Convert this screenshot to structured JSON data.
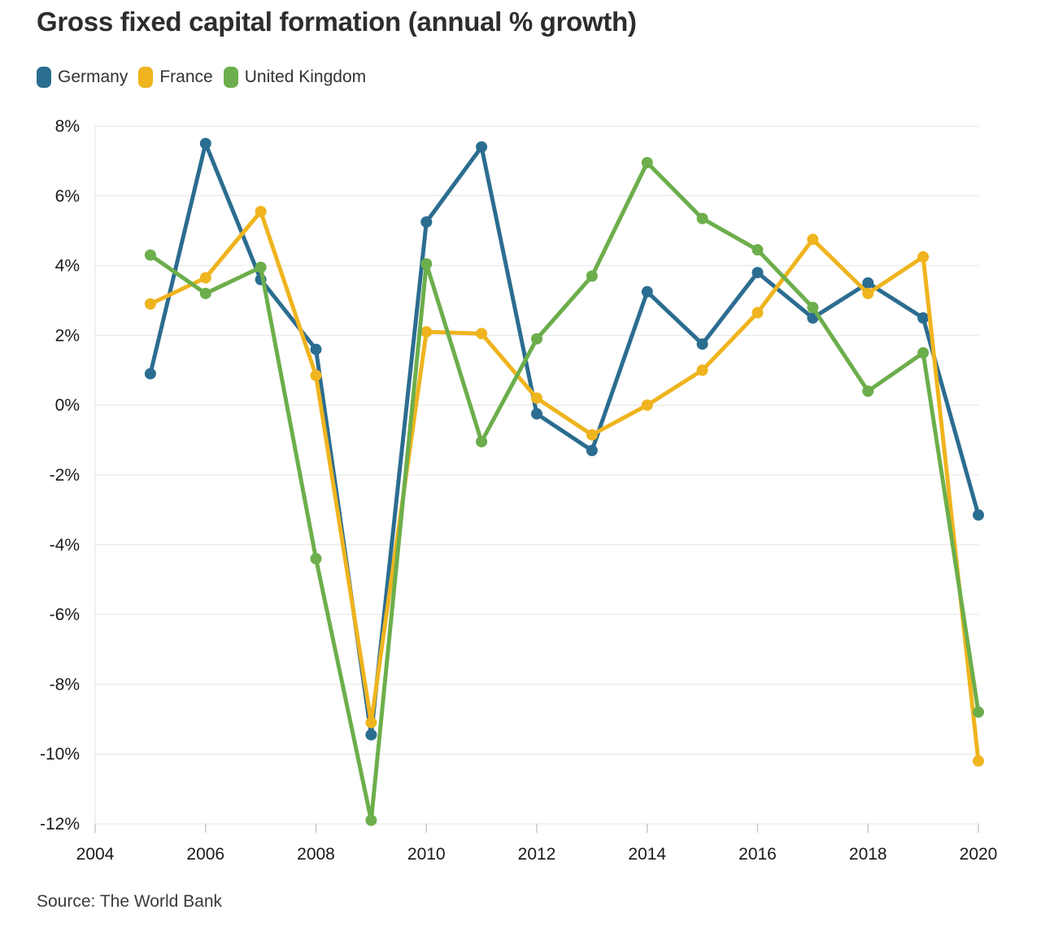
{
  "chart_data": {
    "type": "line",
    "title": "Gross fixed capital formation (annual % growth)",
    "source": "Source: The World Bank",
    "x": [
      2005,
      2006,
      2007,
      2008,
      2009,
      2010,
      2011,
      2012,
      2013,
      2014,
      2015,
      2016,
      2017,
      2018,
      2019,
      2020
    ],
    "series": [
      {
        "name": "Germany",
        "color": "#2b6d90",
        "values": [
          0.9,
          7.5,
          3.6,
          1.6,
          -9.45,
          5.25,
          7.4,
          -0.25,
          -1.3,
          3.25,
          1.75,
          3.8,
          2.5,
          3.5,
          2.5,
          -3.15
        ]
      },
      {
        "name": "France",
        "color": "#efb41e",
        "values": [
          2.9,
          3.65,
          5.55,
          0.85,
          -9.1,
          2.1,
          2.05,
          0.2,
          -0.85,
          0.0,
          1.0,
          2.65,
          4.75,
          3.2,
          4.25,
          -10.2
        ]
      },
      {
        "name": "United Kingdom",
        "color": "#6cae4b",
        "values": [
          4.3,
          3.2,
          3.95,
          -4.4,
          -11.9,
          4.05,
          -1.05,
          1.9,
          3.7,
          6.95,
          5.35,
          4.45,
          2.8,
          0.4,
          1.5,
          -8.8
        ]
      }
    ],
    "xlabel": "",
    "ylabel": "",
    "xlim": [
      2004,
      2020
    ],
    "ylim": [
      -12,
      8
    ],
    "xticks": [
      2004,
      2006,
      2008,
      2010,
      2012,
      2014,
      2016,
      2018,
      2020
    ],
    "ytick_step": 2,
    "ytick_suffix": "%",
    "grid": "horizontal",
    "legend_position": "top-left"
  }
}
